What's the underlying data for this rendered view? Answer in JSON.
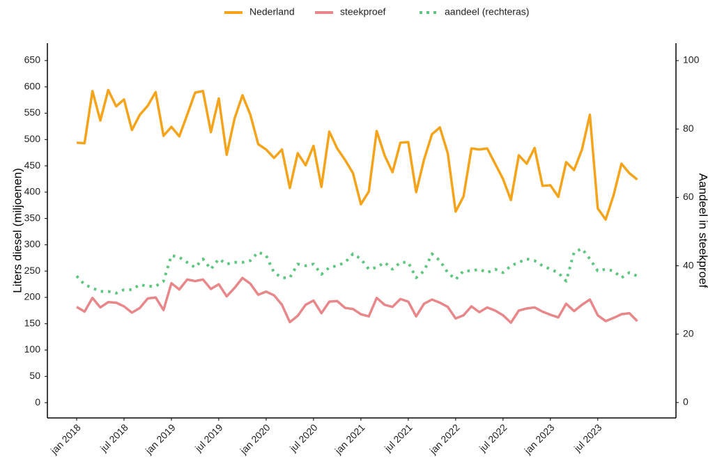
{
  "chart_data": {
    "type": "line",
    "x": [
      "2018-01",
      "2018-02",
      "2018-03",
      "2018-04",
      "2018-05",
      "2018-06",
      "2018-07",
      "2018-08",
      "2018-09",
      "2018-10",
      "2018-11",
      "2018-12",
      "2019-01",
      "2019-02",
      "2019-03",
      "2019-04",
      "2019-05",
      "2019-06",
      "2019-07",
      "2019-08",
      "2019-09",
      "2019-10",
      "2019-11",
      "2019-12",
      "2020-01",
      "2020-02",
      "2020-03",
      "2020-04",
      "2020-05",
      "2020-06",
      "2020-07",
      "2020-08",
      "2020-09",
      "2020-10",
      "2020-11",
      "2020-12",
      "2021-01",
      "2021-02",
      "2021-03",
      "2021-04",
      "2021-05",
      "2021-06",
      "2021-07",
      "2021-08",
      "2021-09",
      "2021-10",
      "2021-11",
      "2021-12",
      "2022-01",
      "2022-02",
      "2022-03",
      "2022-04",
      "2022-05",
      "2022-06",
      "2022-07",
      "2022-08",
      "2022-09",
      "2022-10",
      "2022-11",
      "2022-12",
      "2023-01",
      "2023-02",
      "2023-03",
      "2023-04",
      "2023-05",
      "2023-06",
      "2023-07",
      "2023-08",
      "2023-09",
      "2023-10",
      "2023-11",
      "2023-12"
    ],
    "xticks": [
      {
        "value": "2018-01",
        "label": "jan 2018"
      },
      {
        "value": "2018-07",
        "label": "jul 2018"
      },
      {
        "value": "2019-01",
        "label": "jan 2019"
      },
      {
        "value": "2019-07",
        "label": "jul 2019"
      },
      {
        "value": "2020-01",
        "label": "jan 2020"
      },
      {
        "value": "2020-07",
        "label": "jul 2020"
      },
      {
        "value": "2021-01",
        "label": "jan 2021"
      },
      {
        "value": "2021-07",
        "label": "jul 2021"
      },
      {
        "value": "2022-01",
        "label": "jan 2022"
      },
      {
        "value": "2022-07",
        "label": "jul 2022"
      },
      {
        "value": "2023-01",
        "label": "jan 2023"
      },
      {
        "value": "2023-07",
        "label": "jul 2023"
      }
    ],
    "ylabel": "Liters diesel (miljoenen)",
    "y2label": "Aandeel in steekproef",
    "ylim": [
      -29,
      683
    ],
    "yticks": [
      0,
      50,
      100,
      150,
      200,
      250,
      300,
      350,
      400,
      450,
      500,
      550,
      600,
      650
    ],
    "y2lim": [
      -4.5,
      105.1
    ],
    "y2ticks": [
      0,
      20,
      40,
      60,
      80,
      100
    ],
    "legend": "top",
    "series": [
      {
        "name": "Nederland",
        "color": "#f5a31a",
        "style": "solid",
        "values": [
          494,
          493,
          592,
          536,
          594,
          563,
          576,
          518,
          547,
          564,
          590,
          507,
          524,
          506,
          547,
          589,
          592,
          514,
          578,
          471,
          540,
          584,
          547,
          491,
          481,
          465,
          481,
          408,
          474,
          451,
          488,
          410,
          515,
          483,
          461,
          436,
          377,
          401,
          516,
          470,
          438,
          494,
          495,
          400,
          462,
          510,
          523,
          474,
          363,
          392,
          483,
          481,
          483,
          454,
          425,
          385,
          470,
          454,
          484,
          412,
          413,
          391,
          457,
          442,
          481,
          547,
          369,
          348,
          394,
          454,
          436,
          424
        ]
      },
      {
        "name": "steekproef",
        "color": "#e8878a",
        "style": "solid",
        "values": [
          182,
          173,
          199,
          181,
          191,
          190,
          183,
          171,
          180,
          198,
          200,
          176,
          227,
          215,
          234,
          231,
          234,
          216,
          225,
          202,
          218,
          237,
          226,
          205,
          211,
          204,
          186,
          153,
          165,
          186,
          194,
          170,
          192,
          193,
          180,
          178,
          168,
          164,
          199,
          186,
          182,
          197,
          192,
          164,
          188,
          196,
          190,
          182,
          160,
          166,
          183,
          172,
          181,
          175,
          166,
          152,
          175,
          179,
          181,
          173,
          167,
          162,
          188,
          174,
          186,
          196,
          166,
          155,
          161,
          168,
          170,
          155
        ]
      },
      {
        "name": "aandeel (rechteras)",
        "color": "#5dc57f",
        "style": "dotted",
        "axis": "y2",
        "values": [
          37,
          34.5,
          33.5,
          32.5,
          32.5,
          32,
          33,
          33,
          34.5,
          34,
          34,
          35.5,
          43,
          42.5,
          41,
          39.5,
          42,
          39,
          42,
          40.5,
          41,
          41,
          41.5,
          44,
          43,
          38,
          36.5,
          36.5,
          40.5,
          40,
          40.5,
          37.5,
          39.5,
          40,
          41,
          43.5,
          42,
          39,
          39.5,
          41,
          39,
          41,
          41,
          36.5,
          38.5,
          43.5,
          41.5,
          38,
          36,
          38.5,
          38.5,
          39,
          38,
          39,
          38,
          40,
          41,
          42,
          41.5,
          40,
          39,
          38,
          35.5,
          44,
          45,
          42,
          38.5,
          39,
          38.5,
          36.5,
          38,
          37
        ]
      }
    ]
  }
}
